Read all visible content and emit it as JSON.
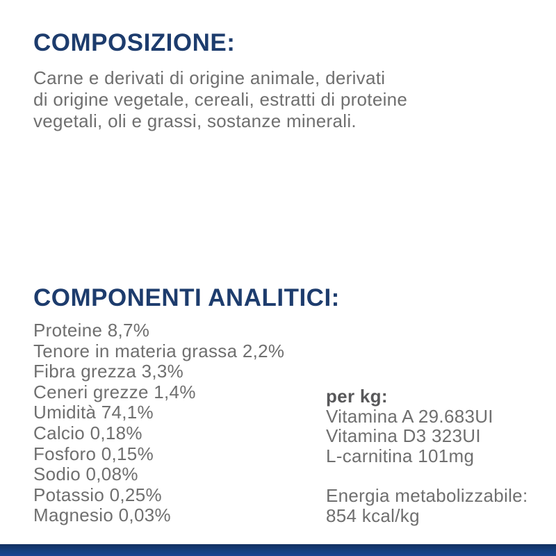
{
  "colors": {
    "heading_navy": "#1d3c6d",
    "body_gray": "#6f6f6f",
    "per_kg_gray": "#58585a",
    "footer_bar_navy": "#143a7c",
    "background": "#ffffff"
  },
  "composition": {
    "heading": "COMPOSIZIONE:",
    "lines": [
      "Carne e derivati di origine animale, derivati",
      "di origine vegetale, cereali, estratti di proteine",
      "vegetali, oli e grassi, sostanze minerali."
    ]
  },
  "analytical": {
    "heading": "COMPONENTI ANALITICI:",
    "components": [
      "Proteine 8,7%",
      "Tenore in materia grassa 2,2%",
      "Fibra grezza 3,3%",
      "Ceneri grezze 1,4%",
      "Umidità 74,1%",
      "Calcio 0,18%",
      "Fosforo 0,15%",
      "Sodio 0,08%",
      "Potassio 0,25%",
      "Magnesio 0,03%"
    ],
    "per_kg": {
      "label": "per kg:",
      "items": [
        "Vitamina A 29.683UI",
        "Vitamina D3 323UI",
        "L-carnitina 101mg"
      ]
    },
    "energy": {
      "lines": [
        "Energia metabolizzabile:",
        "854 kcal/kg"
      ]
    }
  }
}
